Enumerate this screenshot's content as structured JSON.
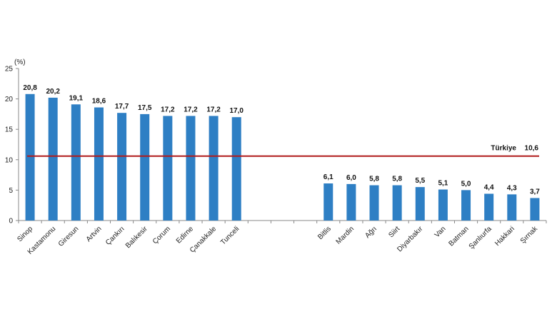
{
  "chart_data": {
    "type": "bar",
    "y_unit": "(%)",
    "ylim": [
      0,
      25
    ],
    "yticks": [
      0,
      5,
      10,
      15,
      20,
      25
    ],
    "bar_color": "#2e7fc4",
    "reference_color": "#b01c1c",
    "categories": [
      "Sinop",
      "Kastamonu",
      "Giresun",
      "Artvin",
      "Çankırı",
      "Balıkesir",
      "Çorum",
      "Edirne",
      "Çanakkale",
      "Tunceli",
      "",
      "",
      "",
      "Bitlis",
      "Mardin",
      "Ağrı",
      "Siirt",
      "Diyarbakır",
      "Van",
      "Batman",
      "Şanlıurfa",
      "Hakkari",
      "Şırnak"
    ],
    "values": [
      20.8,
      20.2,
      19.1,
      18.6,
      17.7,
      17.5,
      17.2,
      17.2,
      17.2,
      17.0,
      null,
      null,
      null,
      6.1,
      6.0,
      5.8,
      5.8,
      5.5,
      5.1,
      5.0,
      4.4,
      4.3,
      3.7
    ],
    "value_labels": [
      "20,8",
      "20,2",
      "19,1",
      "18,6",
      "17,7",
      "17,5",
      "17,2",
      "17,2",
      "17,2",
      "17,0",
      "",
      "",
      "",
      "6,1",
      "6,0",
      "5,8",
      "5,8",
      "5,5",
      "5,1",
      "5,0",
      "4,4",
      "4,3",
      "3,7"
    ],
    "reference": {
      "label": "Türkiye",
      "value": 10.6,
      "value_label": "10,6"
    }
  }
}
